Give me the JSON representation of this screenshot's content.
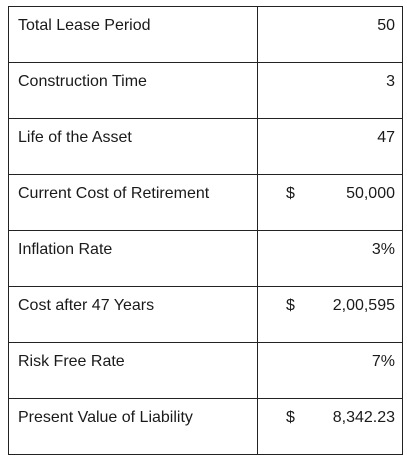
{
  "rows": [
    {
      "label": "Total Lease Period",
      "currency": "",
      "value": "50"
    },
    {
      "label": "Construction Time",
      "currency": "",
      "value": "3"
    },
    {
      "label": "Life of the Asset",
      "currency": "",
      "value": "47"
    },
    {
      "label": "Current Cost of Retirement",
      "currency": "$",
      "value": "50,000"
    },
    {
      "label": "Inflation Rate",
      "currency": "",
      "value": "3%"
    },
    {
      "label": "Cost after 47 Years",
      "currency": "$",
      "value": "2,00,595"
    },
    {
      "label": "Risk Free Rate",
      "currency": "",
      "value": "7%"
    },
    {
      "label": "Present Value of Liability",
      "currency": "$",
      "value": "8,342.23"
    }
  ]
}
